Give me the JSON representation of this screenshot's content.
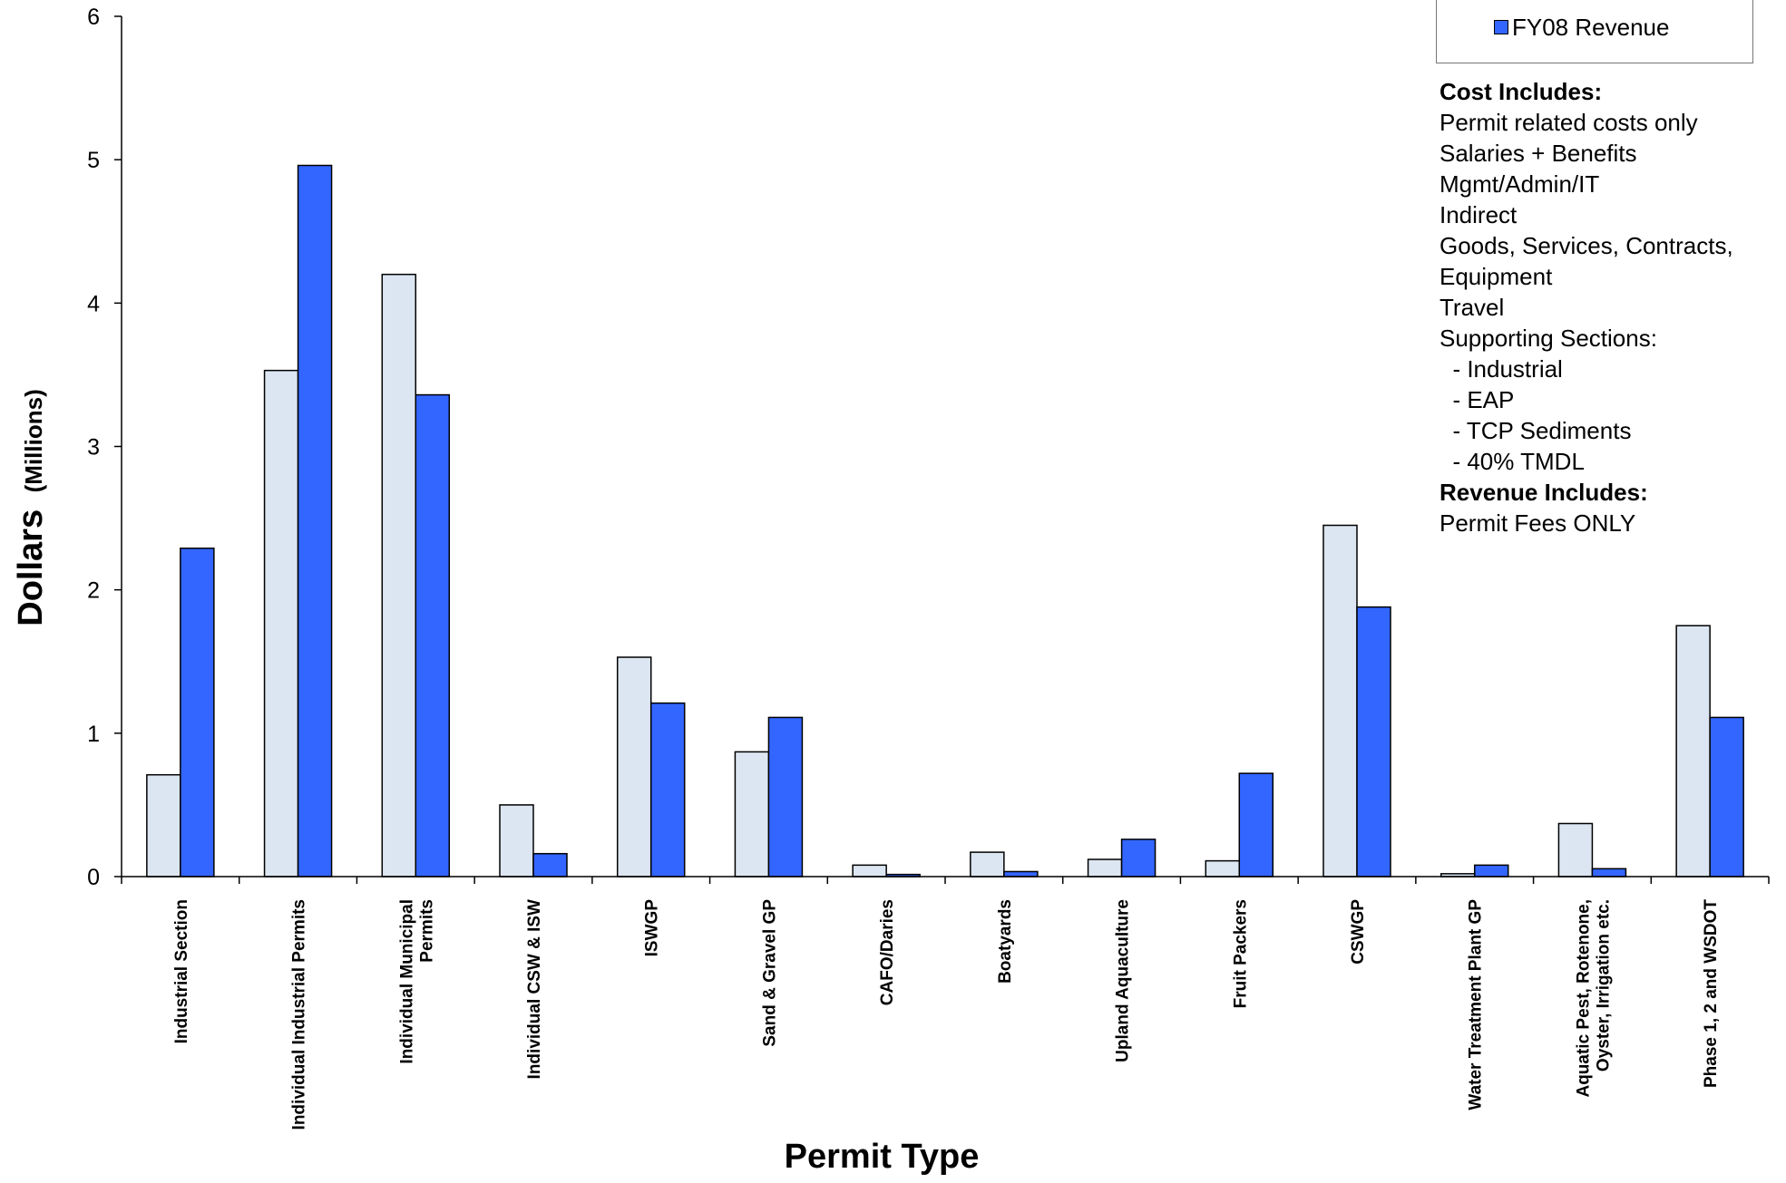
{
  "chart_data": {
    "type": "bar",
    "title": "",
    "xlabel": "Permit Type",
    "ylabel": "Dollars",
    "ylabel_unit": "(Millions)",
    "ylim": [
      0,
      6
    ],
    "yticks": [
      "0",
      "1",
      "2",
      "3",
      "4",
      "5",
      "6"
    ],
    "grid": false,
    "legend_position": "top-right",
    "categories": [
      [
        "Industrial Section"
      ],
      [
        "Individual Industrial Permits"
      ],
      [
        "Individual Municipal",
        "Permits"
      ],
      [
        "Individual CSW & ISW"
      ],
      [
        "ISWGP"
      ],
      [
        "Sand & Gravel GP"
      ],
      [
        "CAFO/Daries"
      ],
      [
        "Boatyards"
      ],
      [
        "Upland Aquaculture"
      ],
      [
        "Fruit Packers"
      ],
      [
        "CSWGP"
      ],
      [
        "Water Treatment Plant GP"
      ],
      [
        "Aquatic Pest, Rotenone,",
        "Oyster, Irrigation etc."
      ],
      [
        "Phase 1, 2 and WSDOT"
      ]
    ],
    "series": [
      {
        "name": "",
        "color": "#dce6f2",
        "values": [
          0.71,
          3.53,
          4.2,
          0.5,
          1.53,
          0.87,
          0.08,
          0.17,
          0.12,
          0.11,
          2.45,
          0.02,
          0.37,
          1.75
        ]
      },
      {
        "name": "FY08 Revenue",
        "color": "#3366ff",
        "values": [
          2.29,
          4.96,
          3.36,
          0.16,
          1.21,
          1.11,
          0.015,
          0.035,
          0.26,
          0.72,
          1.88,
          0.08,
          0.055,
          1.11
        ]
      }
    ]
  },
  "notes": [
    {
      "text": "Cost Includes:",
      "bold": true
    },
    {
      "text": "Permit related costs only",
      "bold": false
    },
    {
      "text": "Salaries + Benefits",
      "bold": false
    },
    {
      "text": "Mgmt/Admin/IT",
      "bold": false
    },
    {
      "text": "Indirect",
      "bold": false
    },
    {
      "text": "Goods, Services, Contracts,",
      "bold": false
    },
    {
      "text": "Equipment",
      "bold": false
    },
    {
      "text": "Travel",
      "bold": false
    },
    {
      "text": "Supporting Sections:",
      "bold": false
    },
    {
      "text": "  - Industrial",
      "bold": false
    },
    {
      "text": "  - EAP",
      "bold": false
    },
    {
      "text": "  - TCP Sediments",
      "bold": false
    },
    {
      "text": "  - 40% TMDL",
      "bold": false
    },
    {
      "text": "Revenue Includes:",
      "bold": true
    },
    {
      "text": "Permit Fees ONLY",
      "bold": false
    }
  ]
}
